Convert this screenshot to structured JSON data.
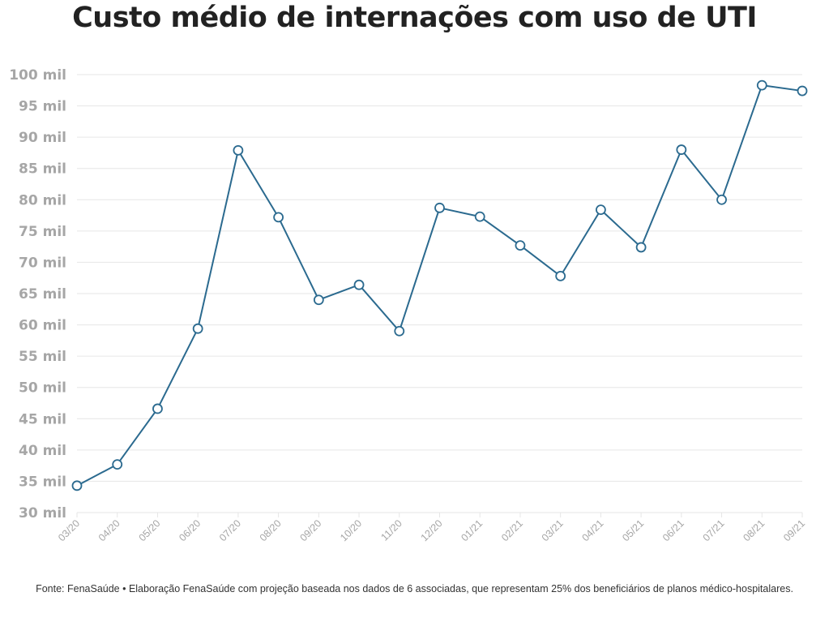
{
  "title": "Custo médio de internações com uso de UTI",
  "source": "Fonte: FenaSaúde • Elaboração FenaSaúde com projeção baseada nos dados de 6 associadas, que representam 25% dos beneficiários de planos médico-hospitalares.",
  "colors": {
    "line": "#2b6a8f",
    "marker_fill": "#ffffff",
    "grid": "#e6e6e6",
    "tick_text": "#a6a6a6",
    "title": "#222222"
  },
  "chart_data": {
    "type": "line",
    "title": "Custo médio de internações com uso de UTI",
    "xlabel": "",
    "ylabel": "",
    "categories": [
      "03/20",
      "04/20",
      "05/20",
      "06/20",
      "07/20",
      "08/20",
      "09/20",
      "10/20",
      "11/20",
      "12/20",
      "01/21",
      "02/21",
      "03/21",
      "04/21",
      "05/21",
      "06/21",
      "07/21",
      "08/21",
      "09/21"
    ],
    "series": [
      {
        "values": [
          34.3,
          37.7,
          46.6,
          59.4,
          87.9,
          77.2,
          64.0,
          66.4,
          59.0,
          78.7,
          77.3,
          72.7,
          67.8,
          78.4,
          72.4,
          88.0,
          80.0,
          98.3,
          97.4
        ]
      }
    ],
    "ylim": [
      30,
      100
    ],
    "yticks": [
      30,
      35,
      40,
      45,
      50,
      55,
      60,
      65,
      70,
      75,
      80,
      85,
      90,
      95,
      100
    ],
    "ytick_labels": [
      "30 mil",
      "35 mil",
      "40 mil",
      "45 mil",
      "50 mil",
      "55 mil",
      "60 mil",
      "65 mil",
      "70 mil",
      "75 mil",
      "80 mil",
      "85 mil",
      "90 mil",
      "95 mil",
      "100 mil"
    ],
    "grid": true,
    "legend": "none"
  }
}
